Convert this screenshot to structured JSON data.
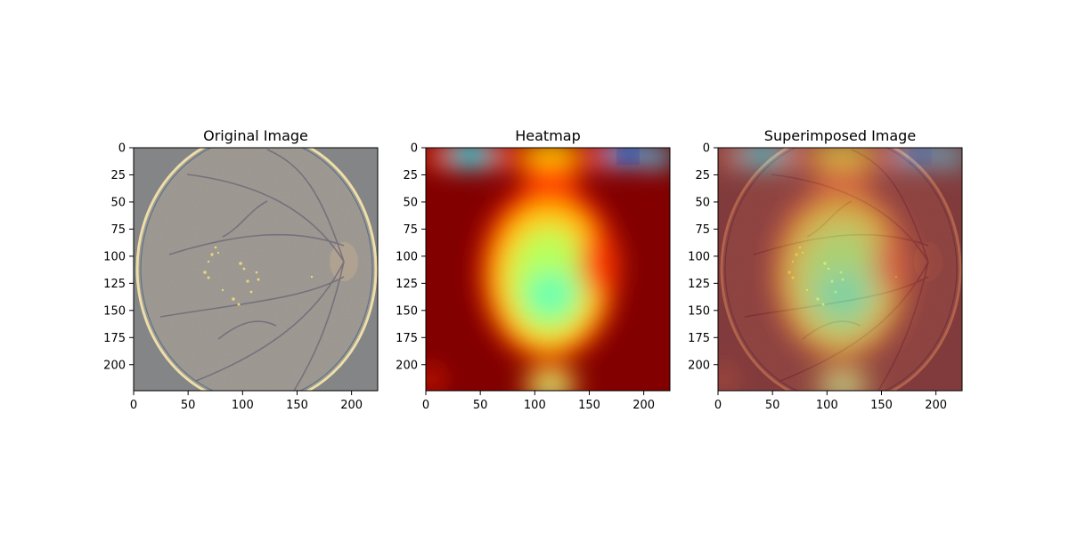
{
  "figure": {
    "layout": "1x3 subplots",
    "background": "#ffffff"
  },
  "chart_data": [
    {
      "type": "heatmap",
      "title": "Original Image",
      "content": "fundus photograph",
      "xlim": [
        0,
        224
      ],
      "ylim": [
        224,
        0
      ],
      "xticks": [
        0,
        50,
        100,
        150,
        200
      ],
      "yticks": [
        0,
        25,
        50,
        75,
        100,
        125,
        150,
        175,
        200
      ],
      "grid": false,
      "legend": "none"
    },
    {
      "type": "heatmap",
      "title": "Heatmap",
      "colormap": "jet",
      "xlim": [
        0,
        224
      ],
      "ylim": [
        224,
        0
      ],
      "xticks": [
        0,
        50,
        100,
        150,
        200
      ],
      "yticks": [
        0,
        25,
        50,
        75,
        100,
        125,
        150,
        175,
        200
      ],
      "grid": false,
      "legend": "none",
      "hotspots": [
        {
          "x": 115,
          "y": 145,
          "level": "high"
        },
        {
          "x": 185,
          "y": 5,
          "level": "high"
        },
        {
          "x": 28,
          "y": 5,
          "level": "medium-high"
        },
        {
          "x": 118,
          "y": 222,
          "level": "medium-high"
        }
      ]
    },
    {
      "type": "heatmap",
      "title": "Superimposed Image",
      "content": "heatmap overlaid on fundus photograph",
      "xlim": [
        0,
        224
      ],
      "ylim": [
        224,
        0
      ],
      "xticks": [
        0,
        50,
        100,
        150,
        200
      ],
      "yticks": [
        0,
        25,
        50,
        75,
        100,
        125,
        150,
        175,
        200
      ],
      "grid": false,
      "legend": "none"
    }
  ]
}
